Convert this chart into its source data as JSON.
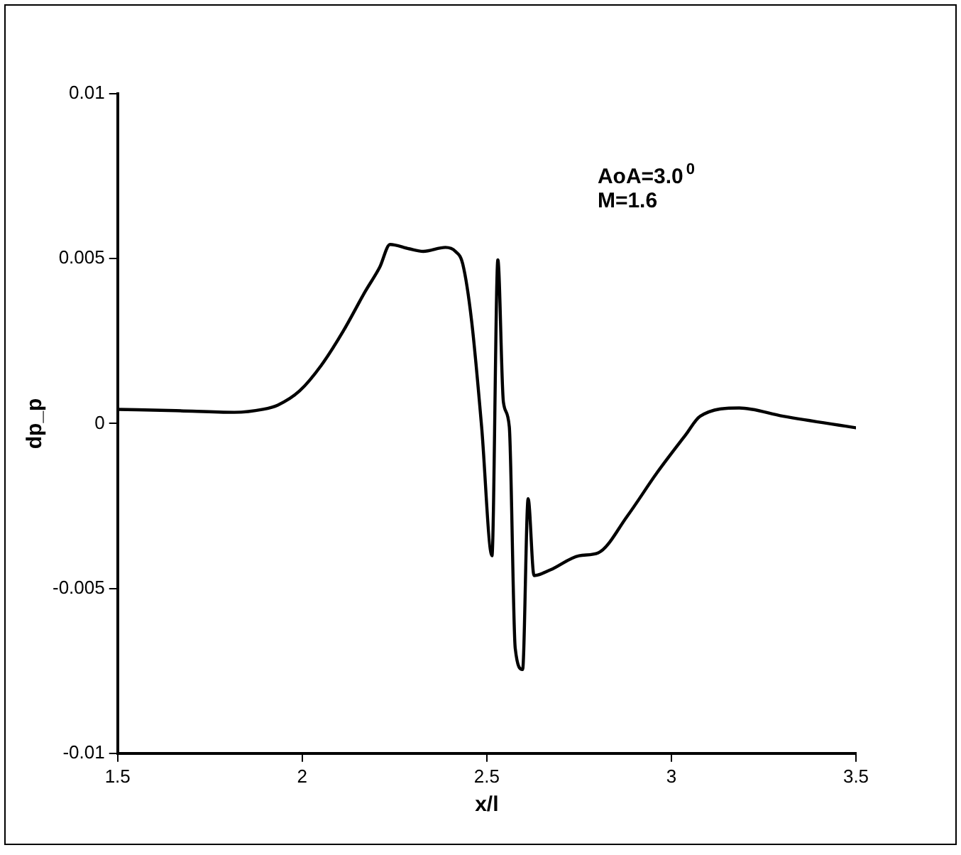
{
  "chart_data": {
    "type": "line",
    "xlabel": "x/l",
    "ylabel": "dp_p",
    "annotations": [
      "AoA=3.0$^{0}$",
      "M=1.6"
    ],
    "xlim": [
      1.5,
      3.5
    ],
    "xticks": [
      1.5,
      2,
      2.5,
      3,
      3.5
    ],
    "ylim": [
      -0.01,
      0.01
    ],
    "yticks": [
      -0.01,
      -0.005,
      0,
      0.005,
      0.01
    ],
    "grid": false,
    "legend": false,
    "marker": "none",
    "line_style": "solid",
    "x": [
      1.5,
      1.658,
      1.816,
      1.894,
      1.934,
      1.993,
      2.052,
      2.111,
      2.171,
      2.21,
      2.238,
      2.289,
      2.328,
      2.388,
      2.415,
      2.435,
      2.459,
      2.486,
      2.514,
      2.53,
      2.545,
      2.561,
      2.577,
      2.597,
      2.612,
      2.628,
      2.672,
      2.75,
      2.802,
      2.881,
      2.96,
      3.039,
      3.078,
      3.184,
      3.303,
      3.5
    ],
    "series": [
      {
        "color": "#000000",
        "values": [
          0.00043,
          0.00039,
          0.00034,
          0.00043,
          0.00056,
          0.00099,
          0.00177,
          0.0028,
          0.00401,
          0.00474,
          0.00543,
          0.0053,
          0.00522,
          0.00534,
          0.00522,
          0.00483,
          0.0031,
          -0.0001,
          -0.00401,
          0.00496,
          0.00065,
          -0.0001,
          -0.00681,
          -0.00746,
          -0.00228,
          -0.00461,
          -0.00444,
          -0.00401,
          -0.00392,
          -0.0028,
          -0.00151,
          -0.00034,
          0.00022,
          0.00047,
          0.00022,
          -0.00013
        ]
      }
    ]
  }
}
